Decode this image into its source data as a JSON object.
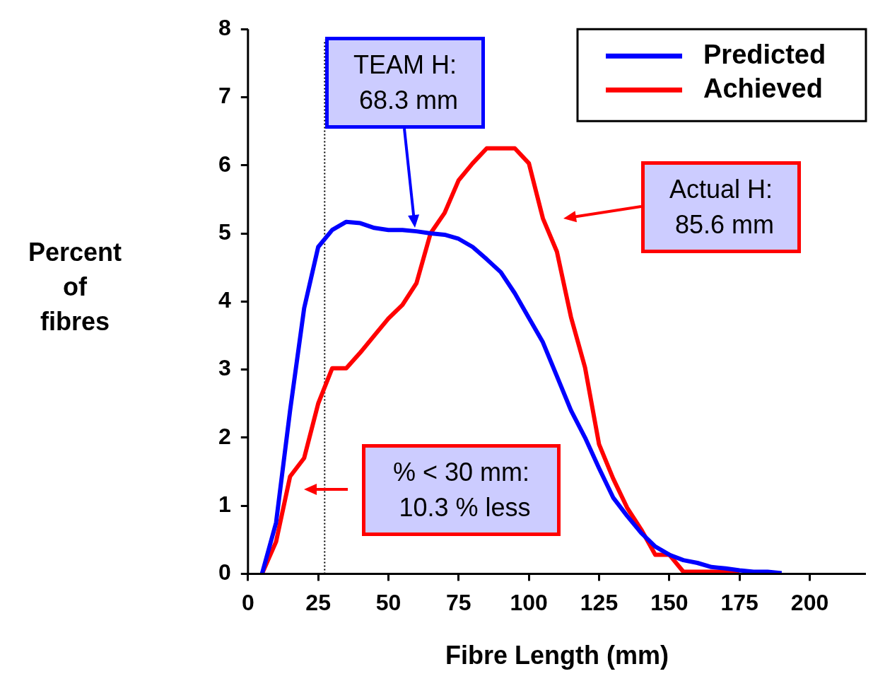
{
  "chart_data": {
    "type": "line",
    "xlabel": "Fibre Length (mm)",
    "ylabel": "Percent\nof\nfibres",
    "x": [
      5,
      10,
      15,
      20,
      25,
      30,
      35,
      40,
      45,
      50,
      55,
      60,
      65,
      70,
      75,
      80,
      85,
      90,
      95,
      100,
      105,
      110,
      115,
      120,
      125,
      130,
      135,
      140,
      145,
      150,
      155,
      160,
      165,
      170,
      175,
      180,
      185,
      190
    ],
    "series": [
      {
        "name": "Predicted",
        "color": "#0000ff",
        "values": [
          0,
          0.75,
          2.4,
          3.9,
          4.8,
          5.05,
          5.17,
          5.15,
          5.08,
          5.05,
          5.05,
          5.03,
          5.0,
          4.98,
          4.92,
          4.8,
          4.62,
          4.43,
          4.12,
          3.76,
          3.4,
          2.9,
          2.4,
          2.0,
          1.55,
          1.12,
          0.85,
          0.6,
          0.4,
          0.28,
          0.2,
          0.16,
          0.1,
          0.08,
          0.05,
          0.03,
          0.03,
          0.01
        ]
      },
      {
        "name": "Achieved",
        "color": "#ff0000",
        "values": [
          0,
          0.47,
          1.43,
          1.7,
          2.5,
          3.02,
          3.02,
          3.25,
          3.5,
          3.75,
          3.95,
          4.27,
          5.0,
          5.3,
          5.78,
          6.03,
          6.25,
          6.25,
          6.25,
          6.03,
          5.22,
          4.73,
          3.77,
          3.03,
          1.9,
          1.4,
          0.97,
          0.65,
          0.28,
          0.28,
          0.03,
          0.03,
          0.03,
          0.03,
          0.01,
          null,
          null,
          null
        ]
      }
    ],
    "xlim": [
      0,
      220
    ],
    "xticks": [
      0,
      25,
      50,
      75,
      100,
      125,
      150,
      175,
      200
    ],
    "ylim": [
      0,
      8
    ],
    "yticks": [
      0,
      1,
      2,
      3,
      4,
      5,
      6,
      7,
      8
    ],
    "grid": false,
    "legend": "top right",
    "marker": "none",
    "line_style": "solid",
    "ref_lines": [
      {
        "axis": "x",
        "value": 27.3,
        "color": "#000000",
        "line_style": "dotted"
      }
    ],
    "annotations": [
      "TEAM H:\n 68.3 mm",
      "Actual H:\n 85.6 mm",
      "% < 30 mm:\n 10.3 % less"
    ]
  }
}
